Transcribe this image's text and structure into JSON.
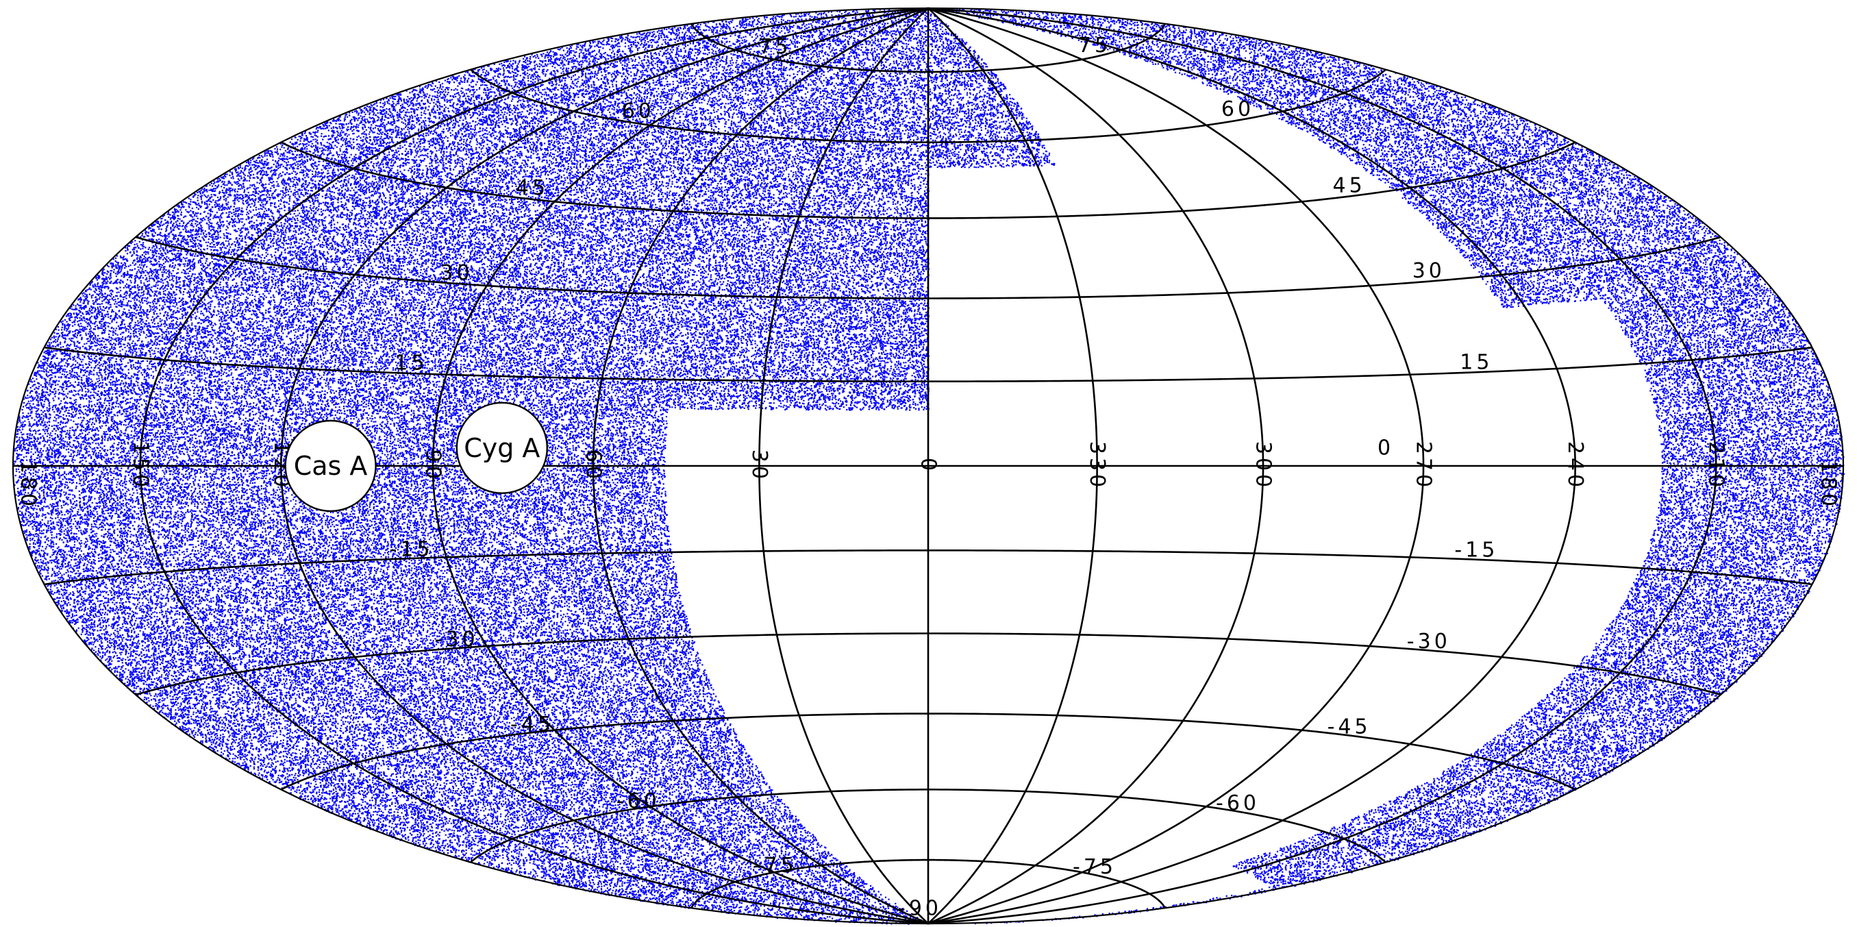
{
  "map": {
    "projection": "aitoff",
    "dot_color": "#0000ff",
    "grid_color": "#000000",
    "background": "#ffffff"
  },
  "longitude_labels": [
    {
      "text": "180",
      "lon": 180,
      "lat": 0
    },
    {
      "text": "150",
      "lon": 150,
      "lat": 0
    },
    {
      "text": "120",
      "lon": 120,
      "lat": 0
    },
    {
      "text": "90",
      "lon": 90,
      "lat": 0
    },
    {
      "text": "60",
      "lon": 60,
      "lat": 0
    },
    {
      "text": "30",
      "lon": 30,
      "lat": 0
    },
    {
      "text": "0",
      "lon": 0,
      "lat": 0
    },
    {
      "text": "330",
      "lon": 330,
      "lat": 0
    },
    {
      "text": "300",
      "lon": 300,
      "lat": 0
    },
    {
      "text": "270",
      "lon": 270,
      "lat": 0
    },
    {
      "text": "240",
      "lon": 240,
      "lat": 0
    },
    {
      "text": "210",
      "lon": 210,
      "lat": 0
    },
    {
      "text": "180",
      "lon": -180,
      "lat": 0
    }
  ],
  "latitude_labels_left": [
    {
      "text": "75",
      "lat": 75
    },
    {
      "text": "60",
      "lat": 60
    },
    {
      "text": "45",
      "lat": 45
    },
    {
      "text": "30",
      "lat": 30
    },
    {
      "text": "15",
      "lat": 15
    },
    {
      "text": "-15",
      "lat": -15
    },
    {
      "text": "-30",
      "lat": -30
    },
    {
      "text": "-45",
      "lat": -45
    },
    {
      "text": "-60",
      "lat": -60
    },
    {
      "text": "-75",
      "lat": -75
    }
  ],
  "latitude_labels_right": [
    {
      "text": "75",
      "lat": 75
    },
    {
      "text": "60",
      "lat": 60
    },
    {
      "text": "45",
      "lat": 45
    },
    {
      "text": "30",
      "lat": 30
    },
    {
      "text": "15",
      "lat": 15
    },
    {
      "text": "0",
      "lat": 0
    },
    {
      "text": "-15",
      "lat": -15
    },
    {
      "text": "-30",
      "lat": -30
    },
    {
      "text": "-45",
      "lat": -45
    },
    {
      "text": "-60",
      "lat": -60
    },
    {
      "text": "-75",
      "lat": -75
    },
    {
      "text": "-90",
      "lat": -90
    }
  ],
  "sources": [
    {
      "name": "Cas A",
      "lon": 110,
      "lat": 0
    },
    {
      "name": "Cyg A",
      "lon": 77,
      "lat": 3
    }
  ]
}
